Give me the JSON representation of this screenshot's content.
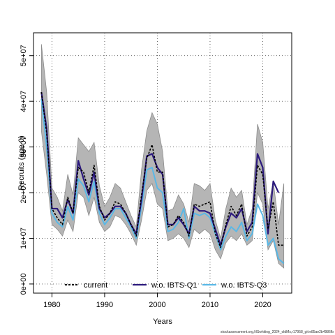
{
  "chart_data": {
    "type": "line",
    "title": "",
    "xlabel": "Years",
    "ylabel": "Recruits (age 0)",
    "xlim": [
      1976.5,
      2025.5
    ],
    "ylim": [
      -2000000,
      55000000
    ],
    "xticks": [
      1980,
      1990,
      2000,
      2010,
      2020
    ],
    "xtick_labels": [
      "1980",
      "1990",
      "2000",
      "2010",
      "2020"
    ],
    "yticks": [
      0,
      10000000,
      20000000,
      30000000,
      40000000,
      50000000
    ],
    "ytick_labels": [
      "0e+00",
      "1e+07",
      "2e+07",
      "3e+07",
      "4e+07",
      "5e+07"
    ],
    "grid": true,
    "legend_position": "bottom",
    "footer": "stockassessment.org,NSwhiting_2024_oldMs,r17958_git:e85ae2b4986fb",
    "x": [
      1978,
      1979,
      1980,
      1981,
      1982,
      1983,
      1984,
      1985,
      1986,
      1987,
      1988,
      1989,
      1990,
      1991,
      1992,
      1993,
      1994,
      1995,
      1996,
      1997,
      1998,
      1999,
      2000,
      2001,
      2002,
      2003,
      2004,
      2005,
      2006,
      2007,
      2008,
      2009,
      2010,
      2011,
      2012,
      2013,
      2014,
      2015,
      2016,
      2017,
      2018,
      2019,
      2020,
      2021,
      2022,
      2023,
      2024
    ],
    "band": {
      "lower": [
        33500000,
        24000000,
        13000000,
        12000000,
        10500000,
        14000000,
        11500000,
        20000000,
        19000000,
        15000000,
        19000000,
        13500000,
        11500000,
        12500000,
        15000000,
        14500000,
        13000000,
        11000000,
        8500000,
        14000000,
        20500000,
        22000000,
        17500000,
        16500000,
        9500000,
        10000000,
        11000000,
        10000000,
        8000000,
        12000000,
        11000000,
        12000000,
        11000000,
        7500000,
        5500000,
        9000000,
        10500000,
        9500000,
        11000000,
        8500000,
        9500000,
        20000000,
        17500000,
        7500000,
        9500000,
        4500000,
        3500000
      ],
      "upper": [
        52500000,
        42000000,
        21000000,
        19000000,
        16000000,
        24000000,
        19500000,
        32000000,
        30500000,
        29000000,
        31000000,
        21500000,
        17000000,
        19000000,
        22000000,
        21000000,
        18000000,
        15000000,
        12500000,
        25000000,
        33500000,
        37500000,
        35000000,
        29000000,
        16000000,
        16500000,
        19500000,
        17500000,
        13500000,
        22000000,
        21500000,
        20500000,
        22000000,
        14000000,
        10000000,
        16500000,
        21000000,
        19000000,
        20500000,
        13000000,
        16500000,
        35000000,
        31000000,
        16500000,
        22500000,
        13000000,
        22000000
      ]
    },
    "series": [
      {
        "name": "current",
        "color": "#000000",
        "values": [
          42000000,
          33000000,
          16500000,
          14500000,
          13000000,
          19000000,
          15500000,
          25500000,
          24500000,
          20000000,
          26000000,
          17000000,
          14000000,
          15500000,
          18000000,
          17500000,
          15500000,
          13000000,
          10500000,
          19500000,
          27500000,
          30500000,
          24500000,
          24500000,
          12500000,
          13000000,
          15000000,
          13500000,
          10500000,
          17500000,
          17000000,
          17500000,
          18000000,
          11000000,
          8000000,
          13000000,
          17000000,
          15000000,
          17500000,
          10500000,
          12500000,
          26000000,
          24000000,
          12000000,
          18000000,
          8500000,
          8500000
        ]
      },
      {
        "name": "w.o. IBTS-Q1",
        "color": "#2c1a7d",
        "values": [
          42000000,
          34000000,
          16500000,
          16500000,
          14500000,
          18500000,
          15500000,
          27000000,
          23000000,
          19500000,
          24500000,
          16500000,
          14500000,
          15500000,
          17000000,
          17000000,
          15500000,
          13000000,
          11000000,
          18500000,
          28000000,
          28500000,
          25500000,
          24000000,
          13000000,
          13000000,
          14500000,
          13000000,
          11000000,
          17000000,
          16000000,
          16000000,
          15500000,
          12000000,
          8500000,
          12500000,
          15500000,
          14500000,
          16500000,
          11500000,
          13500000,
          28500000,
          25500000,
          11000000,
          22500000,
          20000000,
          null
        ]
      },
      {
        "name": "w.o. IBTS-Q3",
        "color": "#5ab8e6",
        "values": [
          40500000,
          30000000,
          15500000,
          13500000,
          12500000,
          17000000,
          14000000,
          23000000,
          21500000,
          18000000,
          22500000,
          15500000,
          13000000,
          14500000,
          16500000,
          16500000,
          14500000,
          12500000,
          10000000,
          17000000,
          25000000,
          25500000,
          21000000,
          20000000,
          11500000,
          12000000,
          13500000,
          16500000,
          10000000,
          15500000,
          15000000,
          15500000,
          14500000,
          11000000,
          7500000,
          10500000,
          12500000,
          11500000,
          13500000,
          9500000,
          11000000,
          17500000,
          15000000,
          8500000,
          10000000,
          5500000,
          4500000
        ]
      }
    ]
  }
}
